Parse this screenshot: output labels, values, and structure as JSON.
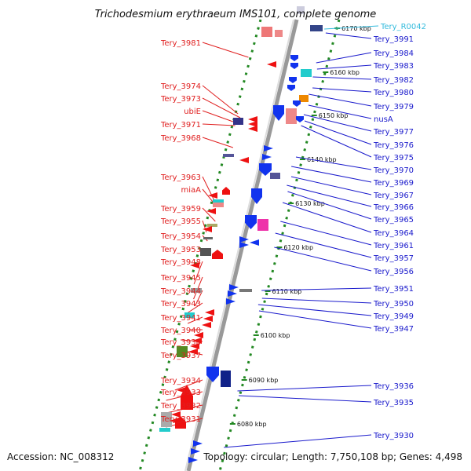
{
  "title": "Trichodesmium erythraeum IMS101, complete genome",
  "accession": "Accession: NC_008312",
  "topology": "Topology: circular; Length: 7,750,108 bp; Genes: 4,498",
  "colors": {
    "minus_label": "#e02020",
    "plus_label": "#1a1acc",
    "rna_label": "#33bbdd",
    "minus_arrow": "#ee1111",
    "plus_arrow": "#1133ee",
    "axis": "#999999",
    "ticks": "#228822"
  },
  "kbp_labels": [
    "6170 kbp",
    "6160 kbp",
    "6150 kbp",
    "6140 kbp",
    "6130 kbp",
    "6120 kbp",
    "6110 kbp",
    "6100 kbp",
    "6090 kbp",
    "6080 kbp"
  ],
  "minus_genes": [
    "Tery_3981",
    "Tery_3974",
    "Tery_3973",
    "ubiE",
    "Tery_3971",
    "Tery_3968",
    "Tery_3963",
    "miaA",
    "Tery_3959",
    "Tery_3955",
    "Tery_3954",
    "Tery_3953",
    "Tery_3948",
    "Tery_3945",
    "Tery_3944",
    "Tery_3943",
    "Tery_3941",
    "Tery_3940",
    "Tery_3938",
    "Tery_3937",
    "Tery_3934",
    "Tery_3933",
    "Tery_3932",
    "Tery_3931"
  ],
  "plus_genes": [
    "Tery_R0042",
    "Tery_3991",
    "Tery_3984",
    "Tery_3983",
    "Tery_3982",
    "Tery_3980",
    "Tery_3979",
    "nusA",
    "Tery_3977",
    "Tery_3976",
    "Tery_3975",
    "Tery_3970",
    "Tery_3969",
    "Tery_3967",
    "Tery_3966",
    "Tery_3965",
    "Tery_3964",
    "Tery_3961",
    "Tery_3957",
    "Tery_3956",
    "Tery_3951",
    "Tery_3950",
    "Tery_3949",
    "Tery_3947",
    "Tery_3936",
    "Tery_3935",
    "Tery_3930"
  ]
}
